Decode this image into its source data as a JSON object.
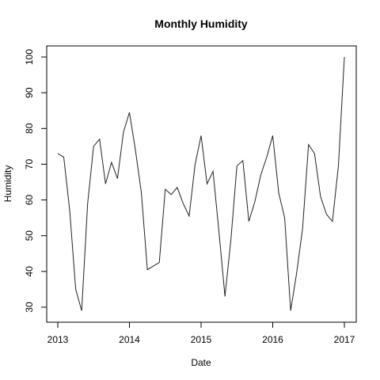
{
  "chart_data": {
    "type": "line",
    "title": "Monthly Humidity",
    "xlabel": "Date",
    "ylabel": "Humidity",
    "xlim": [
      2013.0,
      2017.0
    ],
    "ylim": [
      28,
      101
    ],
    "x_ticks": [
      "2013",
      "2014",
      "2015",
      "2016",
      "2017"
    ],
    "y_ticks": [
      "30",
      "40",
      "50",
      "60",
      "70",
      "80",
      "90",
      "100"
    ],
    "grid": false,
    "legend": "none",
    "line_color": "#222222",
    "x": [
      "2013-01",
      "2013-02",
      "2013-03",
      "2013-04",
      "2013-05",
      "2013-06",
      "2013-07",
      "2013-08",
      "2013-09",
      "2013-10",
      "2013-11",
      "2013-12",
      "2014-01",
      "2014-02",
      "2014-03",
      "2014-04",
      "2014-05",
      "2014-06",
      "2014-07",
      "2014-08",
      "2014-09",
      "2014-10",
      "2014-11",
      "2014-12",
      "2015-01",
      "2015-02",
      "2015-03",
      "2015-04",
      "2015-05",
      "2015-06",
      "2015-07",
      "2015-08",
      "2015-09",
      "2015-10",
      "2015-11",
      "2015-12",
      "2016-01",
      "2016-02",
      "2016-03",
      "2016-04",
      "2016-05",
      "2016-06",
      "2016-07",
      "2016-08",
      "2016-09",
      "2016-10",
      "2016-11",
      "2016-12",
      "2017-01"
    ],
    "values": [
      73,
      72,
      57,
      35,
      29,
      59,
      75,
      77,
      64.5,
      70.5,
      66,
      79,
      84.5,
      74,
      62,
      40.5,
      41.5,
      42.5,
      63,
      61.5,
      63.5,
      59,
      55.5,
      70,
      78,
      64.5,
      68,
      51,
      33,
      49,
      69.5,
      71,
      54,
      59.5,
      67,
      72,
      78,
      62,
      55,
      29,
      39.5,
      52,
      75.5,
      73,
      61,
      56,
      54,
      69.5,
      100
    ]
  }
}
